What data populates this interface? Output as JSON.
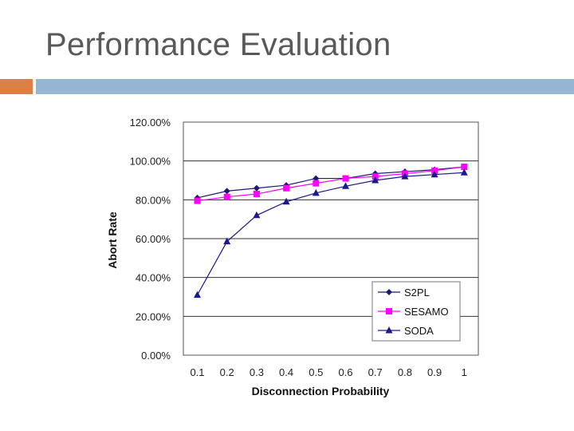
{
  "slide": {
    "title": "Performance Evaluation",
    "accent_colors": {
      "orange": "#dd8047",
      "blue": "#94b6d2"
    }
  },
  "chart_data": {
    "type": "line",
    "x": [
      0.1,
      0.2,
      0.3,
      0.4,
      0.5,
      0.6,
      0.7,
      0.8,
      0.9,
      1
    ],
    "x_tick_labels": [
      "0.1",
      "0.2",
      "0.3",
      "0.4",
      "0.5",
      "0.6",
      "0.7",
      "0.8",
      "0.9",
      "1"
    ],
    "y_tick_labels": [
      "0.00%",
      "20.00%",
      "40.00%",
      "60.00%",
      "80.00%",
      "100.00%",
      "120.00%"
    ],
    "ylim": [
      0,
      120
    ],
    "xlabel": "Disconnection  Probability",
    "ylabel": "Abort  Rate",
    "title": "",
    "grid": "horizontal",
    "legend_position": "bottom-right",
    "series": [
      {
        "name": "S2PL",
        "color": "#1a1a6e",
        "marker": "diamond",
        "values": [
          81,
          84.5,
          86,
          87.5,
          91,
          91,
          93.5,
          94.5,
          95.5,
          97
        ]
      },
      {
        "name": "SESAMO",
        "color": "#ff00ff",
        "marker": "square",
        "values": [
          79.5,
          81.5,
          83,
          86,
          88.5,
          91,
          92,
          93.5,
          95,
          97
        ]
      },
      {
        "name": "SODA",
        "color": "#1a1a8e",
        "marker": "triangle",
        "values": [
          31,
          58.5,
          72,
          79,
          83.5,
          87,
          90,
          92,
          93,
          94
        ]
      }
    ]
  }
}
